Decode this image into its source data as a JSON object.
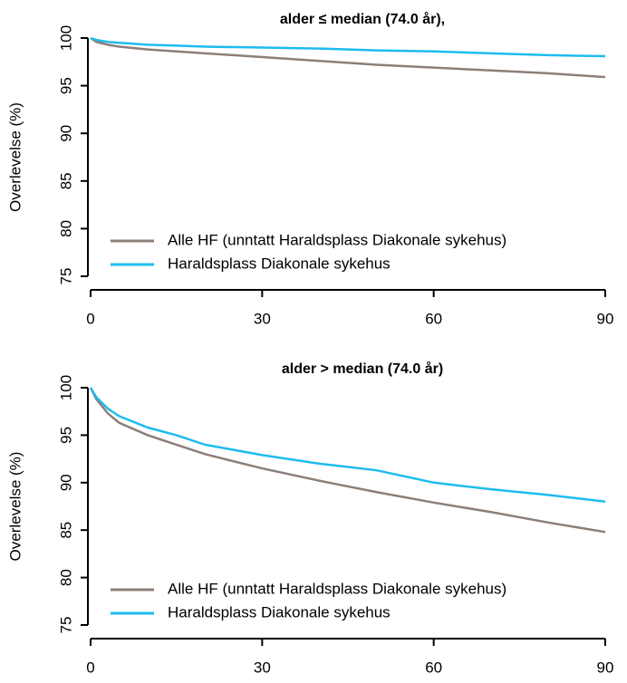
{
  "chart_data": [
    {
      "type": "line",
      "title": "alder ≤ median (74.0 år),",
      "y_label": "Overlevelse (%)",
      "x": [
        0,
        1,
        3,
        5,
        10,
        15,
        20,
        30,
        40,
        50,
        60,
        70,
        80,
        90
      ],
      "series": [
        {
          "name": "Alle HF (unntatt Haraldsplass Diakonale sykehus)",
          "color": "#8c7f78",
          "values": [
            100,
            99.6,
            99.3,
            99.1,
            98.8,
            98.6,
            98.4,
            98.0,
            97.6,
            97.2,
            96.9,
            96.6,
            96.3,
            95.9
          ]
        },
        {
          "name": "Haraldsplass Diakonale sykehus",
          "color": "#1ebcee",
          "values": [
            100,
            99.8,
            99.6,
            99.5,
            99.3,
            99.2,
            99.1,
            99.0,
            98.9,
            98.7,
            98.6,
            98.4,
            98.2,
            98.1
          ]
        }
      ],
      "xlim": [
        0,
        90
      ],
      "xticks": [
        0,
        30,
        60,
        90
      ],
      "ylim": [
        75,
        100
      ],
      "yticks": [
        75,
        80,
        85,
        90,
        95,
        100
      ],
      "grid": false,
      "legend": "bottom-left"
    },
    {
      "type": "line",
      "title": "alder > median (74.0 år)",
      "y_label": "Overlevelse (%)",
      "x": [
        0,
        1,
        3,
        5,
        10,
        15,
        20,
        30,
        40,
        50,
        60,
        70,
        80,
        90
      ],
      "series": [
        {
          "name": "Alle HF (unntatt Haraldsplass Diakonale sykehus)",
          "color": "#8c7f78",
          "values": [
            100,
            98.8,
            97.3,
            96.3,
            95.0,
            94.0,
            93.0,
            91.5,
            90.2,
            89.0,
            87.9,
            86.9,
            85.8,
            84.8
          ]
        },
        {
          "name": "Haraldsplass Diakonale sykehus",
          "color": "#1ebcee",
          "values": [
            100,
            99.0,
            97.8,
            97.0,
            95.8,
            95.0,
            94.0,
            92.9,
            92.0,
            91.3,
            90.0,
            89.3,
            88.7,
            88.0
          ]
        }
      ],
      "xlim": [
        0,
        90
      ],
      "xticks": [
        0,
        30,
        60,
        90
      ],
      "ylim": [
        75,
        100
      ],
      "yticks": [
        75,
        80,
        85,
        90,
        95,
        100
      ],
      "grid": false,
      "legend": "bottom-left"
    }
  ]
}
